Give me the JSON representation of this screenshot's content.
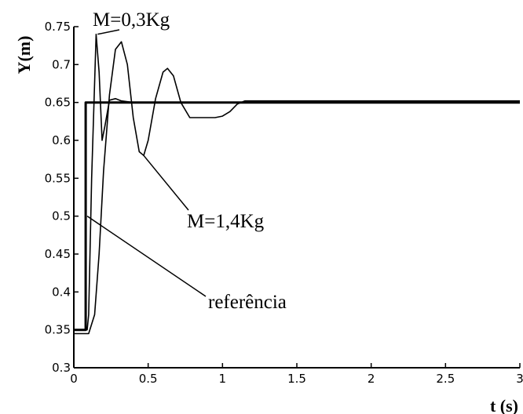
{
  "chart_data": {
    "type": "line",
    "title": "",
    "xlabel": "t (s)",
    "ylabel": "Y(m)",
    "xlim": [
      0,
      3
    ],
    "ylim": [
      0.3,
      0.75
    ],
    "grid": false,
    "x_ticks": [
      0,
      0.5,
      1,
      1.5,
      2,
      2.5,
      3
    ],
    "x_tick_labels": [
      "0",
      "0.5",
      "1",
      "1.5",
      "2",
      "2.5",
      "3"
    ],
    "y_ticks": [
      0.3,
      0.35,
      0.4,
      0.45,
      0.5,
      0.55,
      0.6,
      0.65,
      0.7,
      0.75
    ],
    "y_tick_labels": [
      "0.3",
      "0.35",
      "0.4",
      "0.45",
      "0.5",
      "0.55",
      "0.6",
      "0.65",
      "0.7",
      "0.75"
    ],
    "series": [
      {
        "name": "referência",
        "x": [
          0,
          0.08,
          0.08,
          3
        ],
        "y": [
          0.35,
          0.35,
          0.65,
          0.65
        ]
      },
      {
        "name": "M=0,3Kg",
        "x": [
          0,
          0.09,
          0.1,
          0.12,
          0.15,
          0.17,
          0.19,
          0.21,
          0.24,
          0.28,
          0.32,
          0.4,
          0.6,
          0.8,
          1.0,
          1.5,
          2.0,
          2.5,
          3.0
        ],
        "y": [
          0.35,
          0.35,
          0.37,
          0.55,
          0.74,
          0.69,
          0.6,
          0.62,
          0.653,
          0.655,
          0.652,
          0.65,
          0.65,
          0.65,
          0.65,
          0.65,
          0.65,
          0.65,
          0.65
        ]
      },
      {
        "name": "M=1,4Kg",
        "x": [
          0,
          0.1,
          0.14,
          0.17,
          0.2,
          0.24,
          0.28,
          0.32,
          0.36,
          0.4,
          0.44,
          0.47,
          0.5,
          0.55,
          0.6,
          0.63,
          0.67,
          0.72,
          0.78,
          0.85,
          0.95,
          1.0,
          1.05,
          1.1,
          1.15,
          1.5,
          2.0,
          2.5,
          3.0
        ],
        "y": [
          0.345,
          0.345,
          0.37,
          0.45,
          0.56,
          0.66,
          0.72,
          0.73,
          0.7,
          0.63,
          0.585,
          0.58,
          0.6,
          0.655,
          0.69,
          0.695,
          0.685,
          0.65,
          0.63,
          0.63,
          0.63,
          0.632,
          0.638,
          0.648,
          0.652,
          0.652,
          0.652,
          0.652,
          0.652
        ]
      }
    ],
    "annotations": [
      {
        "text": "M=0,3Kg",
        "target_x": 0.16,
        "target_y": 0.74
      },
      {
        "text": "M=1,4Kg",
        "target_x": 0.47,
        "target_y": 0.58
      },
      {
        "text": "referência",
        "target_x": 0.09,
        "target_y": 0.5
      }
    ]
  }
}
